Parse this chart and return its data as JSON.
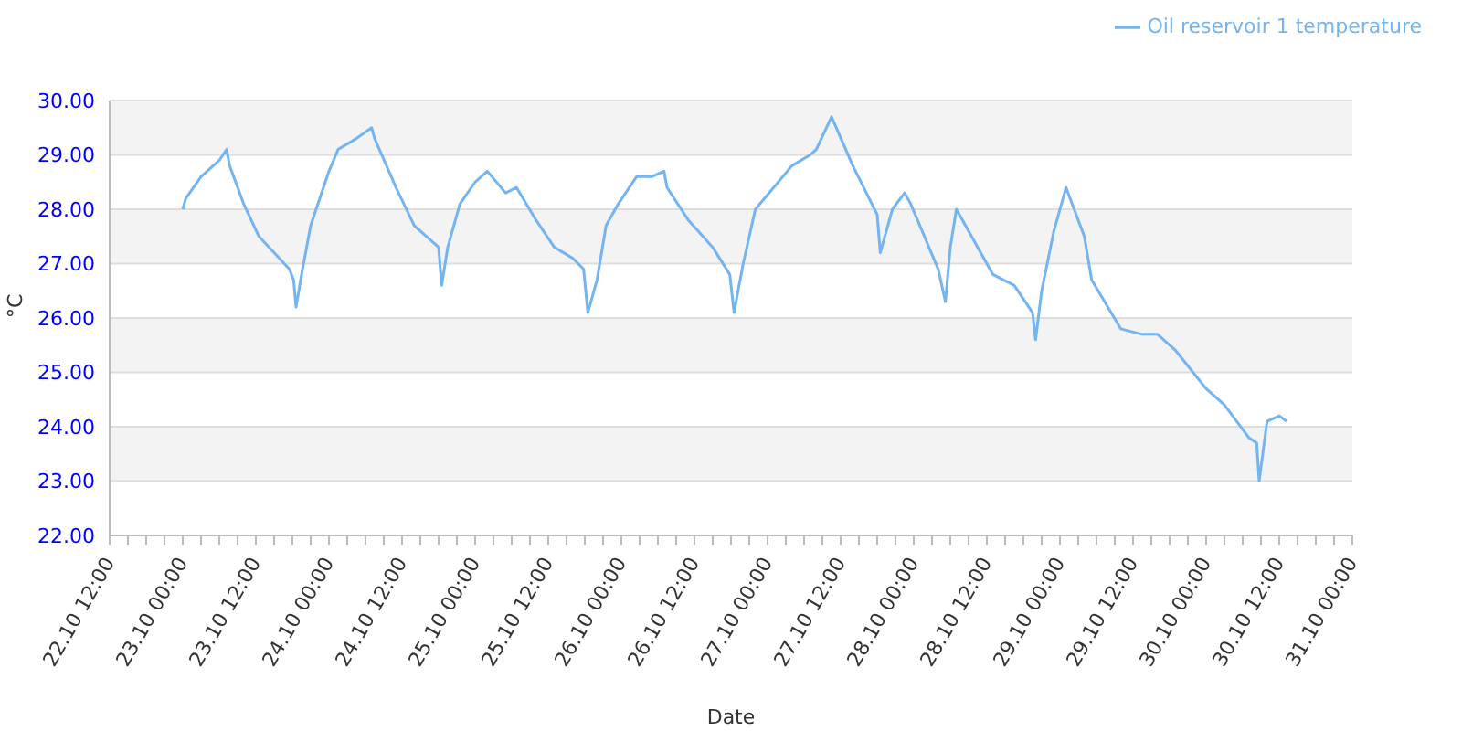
{
  "chart_data": {
    "type": "line",
    "xlabel": "Date",
    "ylabel": "°C",
    "legend": "top right",
    "grid": "y",
    "marker": "none",
    "line_style": "solid",
    "ylim": [
      22,
      30
    ],
    "yticks": [
      {
        "value": 22,
        "label": "22.00"
      },
      {
        "value": 23,
        "label": "23.00"
      },
      {
        "value": 24,
        "label": "24.00"
      },
      {
        "value": 25,
        "label": "25.00"
      },
      {
        "value": 26,
        "label": "26.00"
      },
      {
        "value": 27,
        "label": "27.00"
      },
      {
        "value": 28,
        "label": "28.00"
      },
      {
        "value": 29,
        "label": "29.00"
      },
      {
        "value": 30,
        "label": "30.00"
      }
    ],
    "xlim": [
      "--10-22T12:00",
      "--10-31T00:00"
    ],
    "xticks": [
      {
        "value": "--10-22T12:00",
        "label": "22.10 12:00"
      },
      {
        "value": "--10-22T15:00",
        "label": null
      },
      {
        "value": "--10-22T18:00",
        "label": null
      },
      {
        "value": "--10-22T21:00",
        "label": null
      },
      {
        "value": "--10-23T00:00",
        "label": "23.10 00:00"
      },
      {
        "value": "--10-23T03:00",
        "label": null
      },
      {
        "value": "--10-23T06:00",
        "label": null
      },
      {
        "value": "--10-23T09:00",
        "label": null
      },
      {
        "value": "--10-23T12:00",
        "label": "23.10 12:00"
      },
      {
        "value": "--10-23T15:00",
        "label": null
      },
      {
        "value": "--10-23T18:00",
        "label": null
      },
      {
        "value": "--10-23T21:00",
        "label": null
      },
      {
        "value": "--10-24T00:00",
        "label": "24.10 00:00"
      },
      {
        "value": "--10-24T03:00",
        "label": null
      },
      {
        "value": "--10-24T06:00",
        "label": null
      },
      {
        "value": "--10-24T09:00",
        "label": null
      },
      {
        "value": "--10-24T12:00",
        "label": "24.10 12:00"
      },
      {
        "value": "--10-24T15:00",
        "label": null
      },
      {
        "value": "--10-24T18:00",
        "label": null
      },
      {
        "value": "--10-24T21:00",
        "label": null
      },
      {
        "value": "--10-25T00:00",
        "label": "25.10 00:00"
      },
      {
        "value": "--10-25T03:00",
        "label": null
      },
      {
        "value": "--10-25T06:00",
        "label": null
      },
      {
        "value": "--10-25T09:00",
        "label": null
      },
      {
        "value": "--10-25T12:00",
        "label": "25.10 12:00"
      },
      {
        "value": "--10-25T15:00",
        "label": null
      },
      {
        "value": "--10-25T18:00",
        "label": null
      },
      {
        "value": "--10-25T21:00",
        "label": null
      },
      {
        "value": "--10-26T00:00",
        "label": "26.10 00:00"
      },
      {
        "value": "--10-26T03:00",
        "label": null
      },
      {
        "value": "--10-26T06:00",
        "label": null
      },
      {
        "value": "--10-26T09:00",
        "label": null
      },
      {
        "value": "--10-26T12:00",
        "label": "26.10 12:00"
      },
      {
        "value": "--10-26T15:00",
        "label": null
      },
      {
        "value": "--10-26T18:00",
        "label": null
      },
      {
        "value": "--10-26T21:00",
        "label": null
      },
      {
        "value": "--10-27T00:00",
        "label": "27.10 00:00"
      },
      {
        "value": "--10-27T03:00",
        "label": null
      },
      {
        "value": "--10-27T06:00",
        "label": null
      },
      {
        "value": "--10-27T09:00",
        "label": null
      },
      {
        "value": "--10-27T12:00",
        "label": "27.10 12:00"
      },
      {
        "value": "--10-27T15:00",
        "label": null
      },
      {
        "value": "--10-27T18:00",
        "label": null
      },
      {
        "value": "--10-27T21:00",
        "label": null
      },
      {
        "value": "--10-28T00:00",
        "label": "28.10 00:00"
      },
      {
        "value": "--10-28T03:00",
        "label": null
      },
      {
        "value": "--10-28T06:00",
        "label": null
      },
      {
        "value": "--10-28T09:00",
        "label": null
      },
      {
        "value": "--10-28T12:00",
        "label": "28.10 12:00"
      },
      {
        "value": "--10-28T15:00",
        "label": null
      },
      {
        "value": "--10-28T18:00",
        "label": null
      },
      {
        "value": "--10-28T21:00",
        "label": null
      },
      {
        "value": "--10-29T00:00",
        "label": "29.10 00:00"
      },
      {
        "value": "--10-29T03:00",
        "label": null
      },
      {
        "value": "--10-29T06:00",
        "label": null
      },
      {
        "value": "--10-29T09:00",
        "label": null
      },
      {
        "value": "--10-29T12:00",
        "label": "29.10 12:00"
      },
      {
        "value": "--10-29T15:00",
        "label": null
      },
      {
        "value": "--10-29T18:00",
        "label": null
      },
      {
        "value": "--10-29T21:00",
        "label": null
      },
      {
        "value": "--10-30T00:00",
        "label": "30.10 00:00"
      },
      {
        "value": "--10-30T03:00",
        "label": null
      },
      {
        "value": "--10-30T06:00",
        "label": null
      },
      {
        "value": "--10-30T09:00",
        "label": null
      },
      {
        "value": "--10-30T12:00",
        "label": "30.10 12:00"
      },
      {
        "value": "--10-30T15:00",
        "label": null
      },
      {
        "value": "--10-30T18:00",
        "label": null
      },
      {
        "value": "--10-30T21:00",
        "label": null
      },
      {
        "value": "--10-31T00:00",
        "label": "31.10 00:00"
      }
    ],
    "x": [
      "--10-23T00:00",
      "--10-23T00:30",
      "--10-23T03:00",
      "--10-23T04:00",
      "--10-23T06:00",
      "--10-23T07:12",
      "--10-23T07:42",
      "--10-23T10:00",
      "--10-23T12:30",
      "--10-23T15:00",
      "--10-23T17:30",
      "--10-23T18:12",
      "--10-23T18:36",
      "--10-23T19:30",
      "--10-23T21:00",
      "--10-23T22:30",
      "--10-24T00:00",
      "--10-24T01:30",
      "--10-24T04:30",
      "--10-24T07:00",
      "--10-24T07:30",
      "--10-24T11:00",
      "--10-24T14:00",
      "--10-24T17:00",
      "--10-24T18:00",
      "--10-24T18:30",
      "--10-24T19:30",
      "--10-24T21:30",
      "--10-25T00:00",
      "--10-25T02:00",
      "--10-25T05:00",
      "--10-25T06:48",
      "--10-25T10:00",
      "--10-25T13:00",
      "--10-25T16:00",
      "--10-25T17:48",
      "--10-25T18:30",
      "--10-25T20:00",
      "--10-25T21:30",
      "--10-25T23:30",
      "--10-26T02:30",
      "--10-26T05:00",
      "--10-26T07:00",
      "--10-26T07:30",
      "--10-26T11:00",
      "--10-26T15:00",
      "--10-26T17:48",
      "--10-26T18:30",
      "--10-26T20:00",
      "--10-26T22:00",
      "--10-27T01:00",
      "--10-27T04:00",
      "--10-27T07:00",
      "--10-27T08:00",
      "--10-27T10:30",
      "--10-27T14:00",
      "--10-27T18:00",
      "--10-27T18:30",
      "--10-27T20:30",
      "--10-27T22:30",
      "--10-27T23:30",
      "--10-28T04:00",
      "--10-28T05:12",
      "--10-28T06:00",
      "--10-28T07:00",
      "--10-28T10:00",
      "--10-28T13:00",
      "--10-28T16:30",
      "--10-28T19:30",
      "--10-28T20:00",
      "--10-28T21:00",
      "--10-28T23:00",
      "--10-29T01:00",
      "--10-29T04:00",
      "--10-29T05:12",
      "--10-29T10:00",
      "--10-29T13:30",
      "--10-29T16:00",
      "--10-29T19:00",
      "--10-30T00:00",
      "--10-30T03:00",
      "--10-30T07:00",
      "--10-30T08:18",
      "--10-30T08:42",
      "--10-30T10:00",
      "--10-30T12:00",
      "--10-30T13:12"
    ],
    "series": [
      {
        "name": "Oil reservoir 1 temperature",
        "color": "#74b4f0",
        "values": [
          28.0,
          28.2,
          28.6,
          28.7,
          28.9,
          29.1,
          28.8,
          28.1,
          27.5,
          27.2,
          26.9,
          26.7,
          26.2,
          26.8,
          27.7,
          28.2,
          28.7,
          29.1,
          29.3,
          29.5,
          29.3,
          28.4,
          27.7,
          27.4,
          27.3,
          26.6,
          27.3,
          28.1,
          28.5,
          28.7,
          28.3,
          28.4,
          27.8,
          27.3,
          27.1,
          26.9,
          26.1,
          26.7,
          27.7,
          28.1,
          28.6,
          28.6,
          28.7,
          28.4,
          27.8,
          27.3,
          26.8,
          26.1,
          27.0,
          28.0,
          28.4,
          28.8,
          29.0,
          29.1,
          29.7,
          28.8,
          27.9,
          27.2,
          28.0,
          28.3,
          28.1,
          26.9,
          26.3,
          27.3,
          28.0,
          27.4,
          26.8,
          26.6,
          26.1,
          25.6,
          26.5,
          27.6,
          28.4,
          27.5,
          26.7,
          25.8,
          25.7,
          25.7,
          25.4,
          24.7,
          24.4,
          23.8,
          23.7,
          23.0,
          24.1,
          24.2,
          24.1
        ]
      }
    ]
  }
}
